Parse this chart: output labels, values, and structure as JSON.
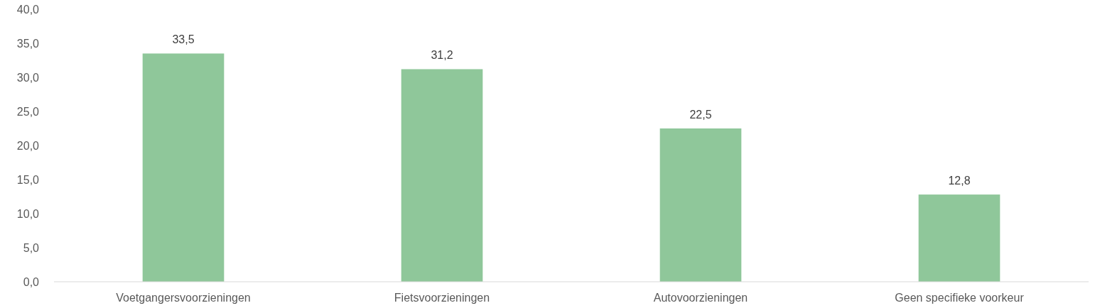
{
  "chart_data": {
    "type": "bar",
    "categories": [
      "Voetgangersvoorzieningen",
      "Fietsvoorzieningen",
      "Autovoorzieningen",
      "Geen specifieke voorkeur"
    ],
    "values": [
      33.5,
      31.2,
      22.5,
      12.8
    ],
    "value_labels": [
      "33,5",
      "31,2",
      "22,5",
      "12,8"
    ],
    "color": "#8fc79a",
    "ylim": [
      0,
      40
    ],
    "yticks": [
      {
        "value": 0,
        "label": "0,0"
      },
      {
        "value": 5,
        "label": "5,0"
      },
      {
        "value": 10,
        "label": "10,0"
      },
      {
        "value": 15,
        "label": "15,0"
      },
      {
        "value": 20,
        "label": "20,0"
      },
      {
        "value": 25,
        "label": "25,0"
      },
      {
        "value": 30,
        "label": "30,0"
      },
      {
        "value": 35,
        "label": "35,0"
      },
      {
        "value": 40,
        "label": "40,0"
      }
    ],
    "grid": false
  }
}
